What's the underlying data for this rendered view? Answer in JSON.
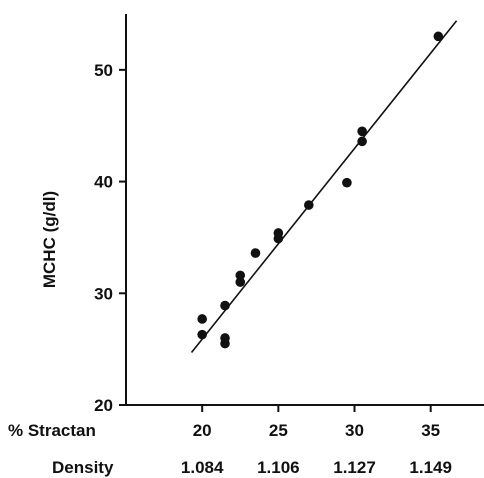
{
  "chart_data": {
    "type": "scatter",
    "title": "",
    "ylabel": "MCHC (g/dl)",
    "xlabel": "",
    "x_row_label": "% Stractan",
    "x2_row_label": "Density",
    "xlim": [
      15,
      38.5
    ],
    "ylim": [
      20,
      55
    ],
    "x_ticks": [
      20,
      25,
      30,
      35
    ],
    "x_tick_labels": [
      "20",
      "25",
      "30",
      "35"
    ],
    "x2_tick_labels": [
      "1.084",
      "1.106",
      "1.127",
      "1.149"
    ],
    "y_ticks": [
      20,
      30,
      40,
      50
    ],
    "y_tick_labels": [
      "20",
      "30",
      "40",
      "50"
    ],
    "grid": false,
    "series": [
      {
        "points": [
          {
            "x": 20.0,
            "y": 26.3
          },
          {
            "x": 20.0,
            "y": 27.7
          },
          {
            "x": 21.5,
            "y": 25.5
          },
          {
            "x": 21.5,
            "y": 26.0
          },
          {
            "x": 21.5,
            "y": 28.9
          },
          {
            "x": 22.5,
            "y": 31.0
          },
          {
            "x": 22.5,
            "y": 31.6
          },
          {
            "x": 23.5,
            "y": 33.6
          },
          {
            "x": 25.0,
            "y": 34.9
          },
          {
            "x": 25.0,
            "y": 35.4
          },
          {
            "x": 27.0,
            "y": 37.9
          },
          {
            "x": 29.5,
            "y": 39.9
          },
          {
            "x": 30.5,
            "y": 43.6
          },
          {
            "x": 30.5,
            "y": 44.5
          },
          {
            "x": 35.5,
            "y": 53.0
          }
        ]
      }
    ],
    "regression_line": {
      "x": [
        19.3,
        36.7
      ],
      "y": [
        24.7,
        54.4
      ]
    },
    "colors": {
      "marker": "#111111",
      "line": "#111111",
      "axis": "#111111"
    }
  }
}
